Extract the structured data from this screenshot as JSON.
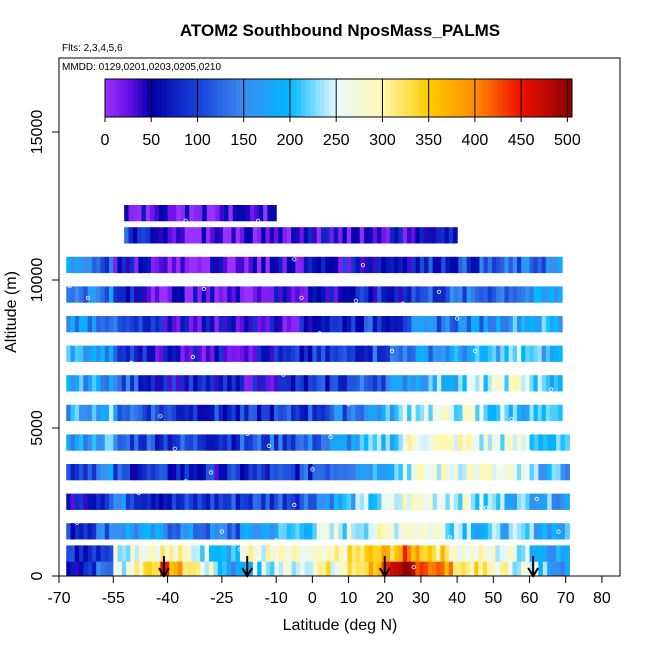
{
  "chart_data": {
    "type": "heatmap",
    "title": "ATOM2 Southbound NposMass_PALMS",
    "flights_label": "Flts: 2,3,4,5,6",
    "dates_label": "MMDD: 0129,0201,0203,0205,0210",
    "xlabel": "Latitude (deg N)",
    "ylabel": "Altitude (m)",
    "xlim": [
      -70,
      85
    ],
    "ylim": [
      0,
      17500
    ],
    "x_ticks": [
      -70,
      -55,
      -40,
      -25,
      -10,
      0,
      10,
      20,
      30,
      40,
      50,
      60,
      70,
      80
    ],
    "y_ticks": [
      0,
      5000,
      10000,
      15000
    ],
    "colorbar": {
      "min": 0,
      "max": 505,
      "ticks": [
        0,
        50,
        100,
        150,
        200,
        250,
        300,
        350,
        400,
        450,
        500
      ],
      "stops": [
        {
          "v": 0,
          "c": "#9a30ff"
        },
        {
          "v": 25,
          "c": "#6a10e8"
        },
        {
          "v": 50,
          "c": "#0000a8"
        },
        {
          "v": 100,
          "c": "#1840d8"
        },
        {
          "v": 150,
          "c": "#3a8cf0"
        },
        {
          "v": 200,
          "c": "#00b8ff"
        },
        {
          "v": 250,
          "c": "#e8f8ff"
        },
        {
          "v": 300,
          "c": "#fff8b0"
        },
        {
          "v": 350,
          "c": "#ffcc00"
        },
        {
          "v": 400,
          "c": "#ff8c00"
        },
        {
          "v": 450,
          "c": "#ee1000"
        },
        {
          "v": 505,
          "c": "#8a0000"
        }
      ]
    },
    "altitude_bands": [
      {
        "alt": 250,
        "segments": [
          [
            -68,
            0.1,
            -55,
            0.3
          ],
          [
            -55,
            0.45,
            -42,
            0.75
          ],
          [
            -42,
            0.85,
            -20,
            0.3
          ],
          [
            -20,
            0.4,
            5,
            0.6
          ],
          [
            5,
            0.5,
            25,
            0.9
          ],
          [
            25,
            1.0,
            40,
            0.7
          ],
          [
            40,
            0.65,
            60,
            0.5
          ],
          [
            60,
            0.45,
            71,
            0.35
          ]
        ]
      },
      {
        "alt": 750,
        "segments": [
          [
            -68,
            0.15,
            -55,
            0.25
          ],
          [
            -55,
            0.5,
            -42,
            0.6
          ],
          [
            -42,
            0.6,
            -20,
            0.4
          ],
          [
            -20,
            0.55,
            5,
            0.5
          ],
          [
            5,
            0.55,
            25,
            0.75
          ],
          [
            25,
            0.8,
            40,
            0.6
          ],
          [
            40,
            0.55,
            60,
            0.5
          ],
          [
            60,
            0.4,
            71,
            0.35
          ]
        ]
      },
      {
        "alt": 1500,
        "segments": [
          [
            -68,
            0.15,
            -55,
            0.3
          ],
          [
            -55,
            0.35,
            -40,
            0.3
          ],
          [
            -40,
            0.3,
            -20,
            0.25
          ],
          [
            -20,
            0.3,
            0,
            0.45
          ],
          [
            0,
            0.45,
            25,
            0.55
          ],
          [
            25,
            0.6,
            45,
            0.45
          ],
          [
            45,
            0.4,
            60,
            0.4
          ],
          [
            60,
            0.4,
            71,
            0.35
          ]
        ]
      },
      {
        "alt": 2500,
        "segments": [
          [
            -68,
            0.1,
            -55,
            0.25
          ],
          [
            -55,
            0.3,
            -40,
            0.15
          ],
          [
            -40,
            0.15,
            -20,
            0.2
          ],
          [
            -20,
            0.2,
            0,
            0.25
          ],
          [
            0,
            0.3,
            25,
            0.5
          ],
          [
            25,
            0.55,
            45,
            0.5
          ],
          [
            45,
            0.45,
            60,
            0.4
          ],
          [
            60,
            0.4,
            71,
            0.35
          ]
        ]
      },
      {
        "alt": 3500,
        "segments": [
          [
            -68,
            0.2,
            -55,
            0.3
          ],
          [
            -55,
            0.2,
            -40,
            0.15
          ],
          [
            -40,
            0.15,
            -20,
            0.15
          ],
          [
            -20,
            0.15,
            0,
            0.2
          ],
          [
            0,
            0.25,
            25,
            0.45
          ],
          [
            25,
            0.5,
            45,
            0.55
          ],
          [
            45,
            0.55,
            60,
            0.45
          ],
          [
            60,
            0.4,
            71,
            0.35
          ]
        ]
      },
      {
        "alt": 4500,
        "segments": [
          [
            -68,
            0.3,
            -55,
            0.4
          ],
          [
            -55,
            0.25,
            -40,
            0.2
          ],
          [
            -40,
            0.2,
            -20,
            0.2
          ],
          [
            -20,
            0.2,
            0,
            0.25
          ],
          [
            0,
            0.25,
            25,
            0.45
          ],
          [
            25,
            0.55,
            45,
            0.55
          ],
          [
            45,
            0.5,
            60,
            0.5
          ],
          [
            60,
            0.45,
            71,
            0.35
          ]
        ]
      },
      {
        "alt": 5500,
        "segments": [
          [
            -68,
            0.35,
            -55,
            0.4
          ],
          [
            -55,
            0.3,
            -40,
            0.2
          ],
          [
            -40,
            0.2,
            -20,
            0.15
          ],
          [
            -20,
            0.15,
            0,
            0.2
          ],
          [
            0,
            0.2,
            25,
            0.4
          ],
          [
            25,
            0.5,
            45,
            0.5
          ],
          [
            45,
            0.45,
            60,
            0.4
          ],
          [
            60,
            0.4,
            69,
            0.35
          ]
        ]
      },
      {
        "alt": 6500,
        "segments": [
          [
            -68,
            0.35,
            -55,
            0.35
          ],
          [
            -55,
            0.25,
            -40,
            0.15
          ],
          [
            -40,
            0.15,
            -20,
            0.1
          ],
          [
            -20,
            0.1,
            0,
            0.15
          ],
          [
            0,
            0.15,
            25,
            0.3
          ],
          [
            25,
            0.35,
            45,
            0.45
          ],
          [
            45,
            0.45,
            60,
            0.55
          ],
          [
            60,
            0.45,
            69,
            0.35
          ]
        ]
      },
      {
        "alt": 7500,
        "segments": [
          [
            -68,
            0.4,
            -55,
            0.3
          ],
          [
            -55,
            0.2,
            -40,
            0.1
          ],
          [
            -40,
            0.1,
            -20,
            0.1
          ],
          [
            -20,
            0.1,
            0,
            0.15
          ],
          [
            0,
            0.15,
            25,
            0.25
          ],
          [
            25,
            0.3,
            45,
            0.35
          ],
          [
            45,
            0.35,
            60,
            0.45
          ],
          [
            60,
            0.4,
            69,
            0.35
          ]
        ]
      },
      {
        "alt": 8500,
        "segments": [
          [
            -68,
            0.35,
            -55,
            0.3
          ],
          [
            -55,
            0.2,
            -40,
            0.1
          ],
          [
            -40,
            0.1,
            -20,
            0.1
          ],
          [
            -20,
            0.1,
            0,
            0.1
          ],
          [
            0,
            0.15,
            25,
            0.2
          ],
          [
            25,
            0.25,
            45,
            0.3
          ],
          [
            45,
            0.3,
            60,
            0.4
          ],
          [
            60,
            0.4,
            69,
            0.35
          ]
        ]
      },
      {
        "alt": 9500,
        "segments": [
          [
            -68,
            0.3,
            -55,
            0.3
          ],
          [
            -55,
            0.15,
            -40,
            0.05
          ],
          [
            -40,
            0.05,
            -20,
            0.05
          ],
          [
            -20,
            0.05,
            0,
            0.1
          ],
          [
            0,
            0.1,
            25,
            0.15
          ],
          [
            25,
            0.2,
            45,
            0.25
          ],
          [
            45,
            0.25,
            60,
            0.3
          ],
          [
            60,
            0.3,
            69,
            0.35
          ]
        ]
      },
      {
        "alt": 10500,
        "segments": [
          [
            -68,
            0.4,
            -55,
            0.2
          ],
          [
            -55,
            0.1,
            -40,
            0.05
          ],
          [
            -40,
            0.05,
            -20,
            0.05
          ],
          [
            -20,
            0.05,
            0,
            0.1
          ],
          [
            0,
            0.1,
            25,
            0.15
          ],
          [
            25,
            0.15,
            45,
            0.2
          ],
          [
            45,
            0.2,
            60,
            0.25
          ],
          [
            60,
            0.25,
            69,
            0.3
          ]
        ]
      },
      {
        "alt": 11500,
        "segments": [
          [
            -52,
            0.2,
            -40,
            0.05
          ],
          [
            -40,
            0.03,
            -20,
            0.03
          ],
          [
            -20,
            0.05,
            0,
            0.08
          ],
          [
            0,
            0.08,
            25,
            0.1
          ],
          [
            25,
            0.1,
            40,
            0.12
          ]
        ]
      },
      {
        "alt": 12250,
        "segments": [
          [
            -52,
            0.1,
            -40,
            0.05
          ],
          [
            -40,
            0.03,
            -10,
            0.05
          ]
        ]
      }
    ],
    "flight_track_points": [
      [
        -67,
        9800
      ],
      [
        -62,
        9400
      ],
      [
        -55,
        8900
      ],
      [
        -50,
        7200
      ],
      [
        -45,
        6100
      ],
      [
        -42,
        5400
      ],
      [
        -38,
        4300
      ],
      [
        -35,
        3200
      ],
      [
        -30,
        2100
      ],
      [
        -25,
        1500
      ],
      [
        -20,
        900
      ],
      [
        -15,
        600
      ],
      [
        -10,
        1200
      ],
      [
        -5,
        2400
      ],
      [
        0,
        3600
      ],
      [
        5,
        4700
      ],
      [
        10,
        5800
      ],
      [
        15,
        6900
      ],
      [
        20,
        8100
      ],
      [
        25,
        9200
      ],
      [
        30,
        10100
      ],
      [
        35,
        9600
      ],
      [
        40,
        8700
      ],
      [
        45,
        7600
      ],
      [
        50,
        6400
      ],
      [
        55,
        5300
      ],
      [
        60,
        4200
      ],
      [
        65,
        3100
      ],
      [
        -60,
        11300
      ],
      [
        -45,
        11900
      ],
      [
        -35,
        12000
      ],
      [
        -25,
        11900
      ],
      [
        -15,
        12000
      ],
      [
        -5,
        10700
      ],
      [
        -48,
        2800
      ],
      [
        -52,
        4100
      ],
      [
        -40,
        800
      ],
      [
        -28,
        3500
      ],
      [
        -18,
        4800
      ],
      [
        -8,
        6800
      ],
      [
        2,
        8200
      ],
      [
        12,
        9300
      ],
      [
        22,
        7600
      ],
      [
        32,
        6100
      ],
      [
        42,
        4900
      ],
      [
        52,
        3700
      ],
      [
        62,
        2600
      ],
      [
        68,
        1500
      ],
      [
        -65,
        1800
      ],
      [
        -58,
        2900
      ],
      [
        -44,
        9100
      ],
      [
        -33,
        7400
      ],
      [
        -22,
        5900
      ],
      [
        -12,
        4400
      ],
      [
        8,
        2900
      ],
      [
        18,
        1800
      ],
      [
        28,
        300
      ],
      [
        38,
        1300
      ],
      [
        48,
        2300
      ],
      [
        58,
        8100
      ],
      [
        66,
        6300
      ],
      [
        -3,
        9400
      ],
      [
        26,
        4400
      ],
      [
        36,
        5700
      ],
      [
        46,
        8900
      ],
      [
        56,
        9900
      ],
      [
        -56,
        6100
      ],
      [
        -30,
        9700
      ],
      [
        14,
        10500
      ]
    ],
    "arrows_lat": [
      -41,
      -18,
      20,
      61
    ]
  }
}
